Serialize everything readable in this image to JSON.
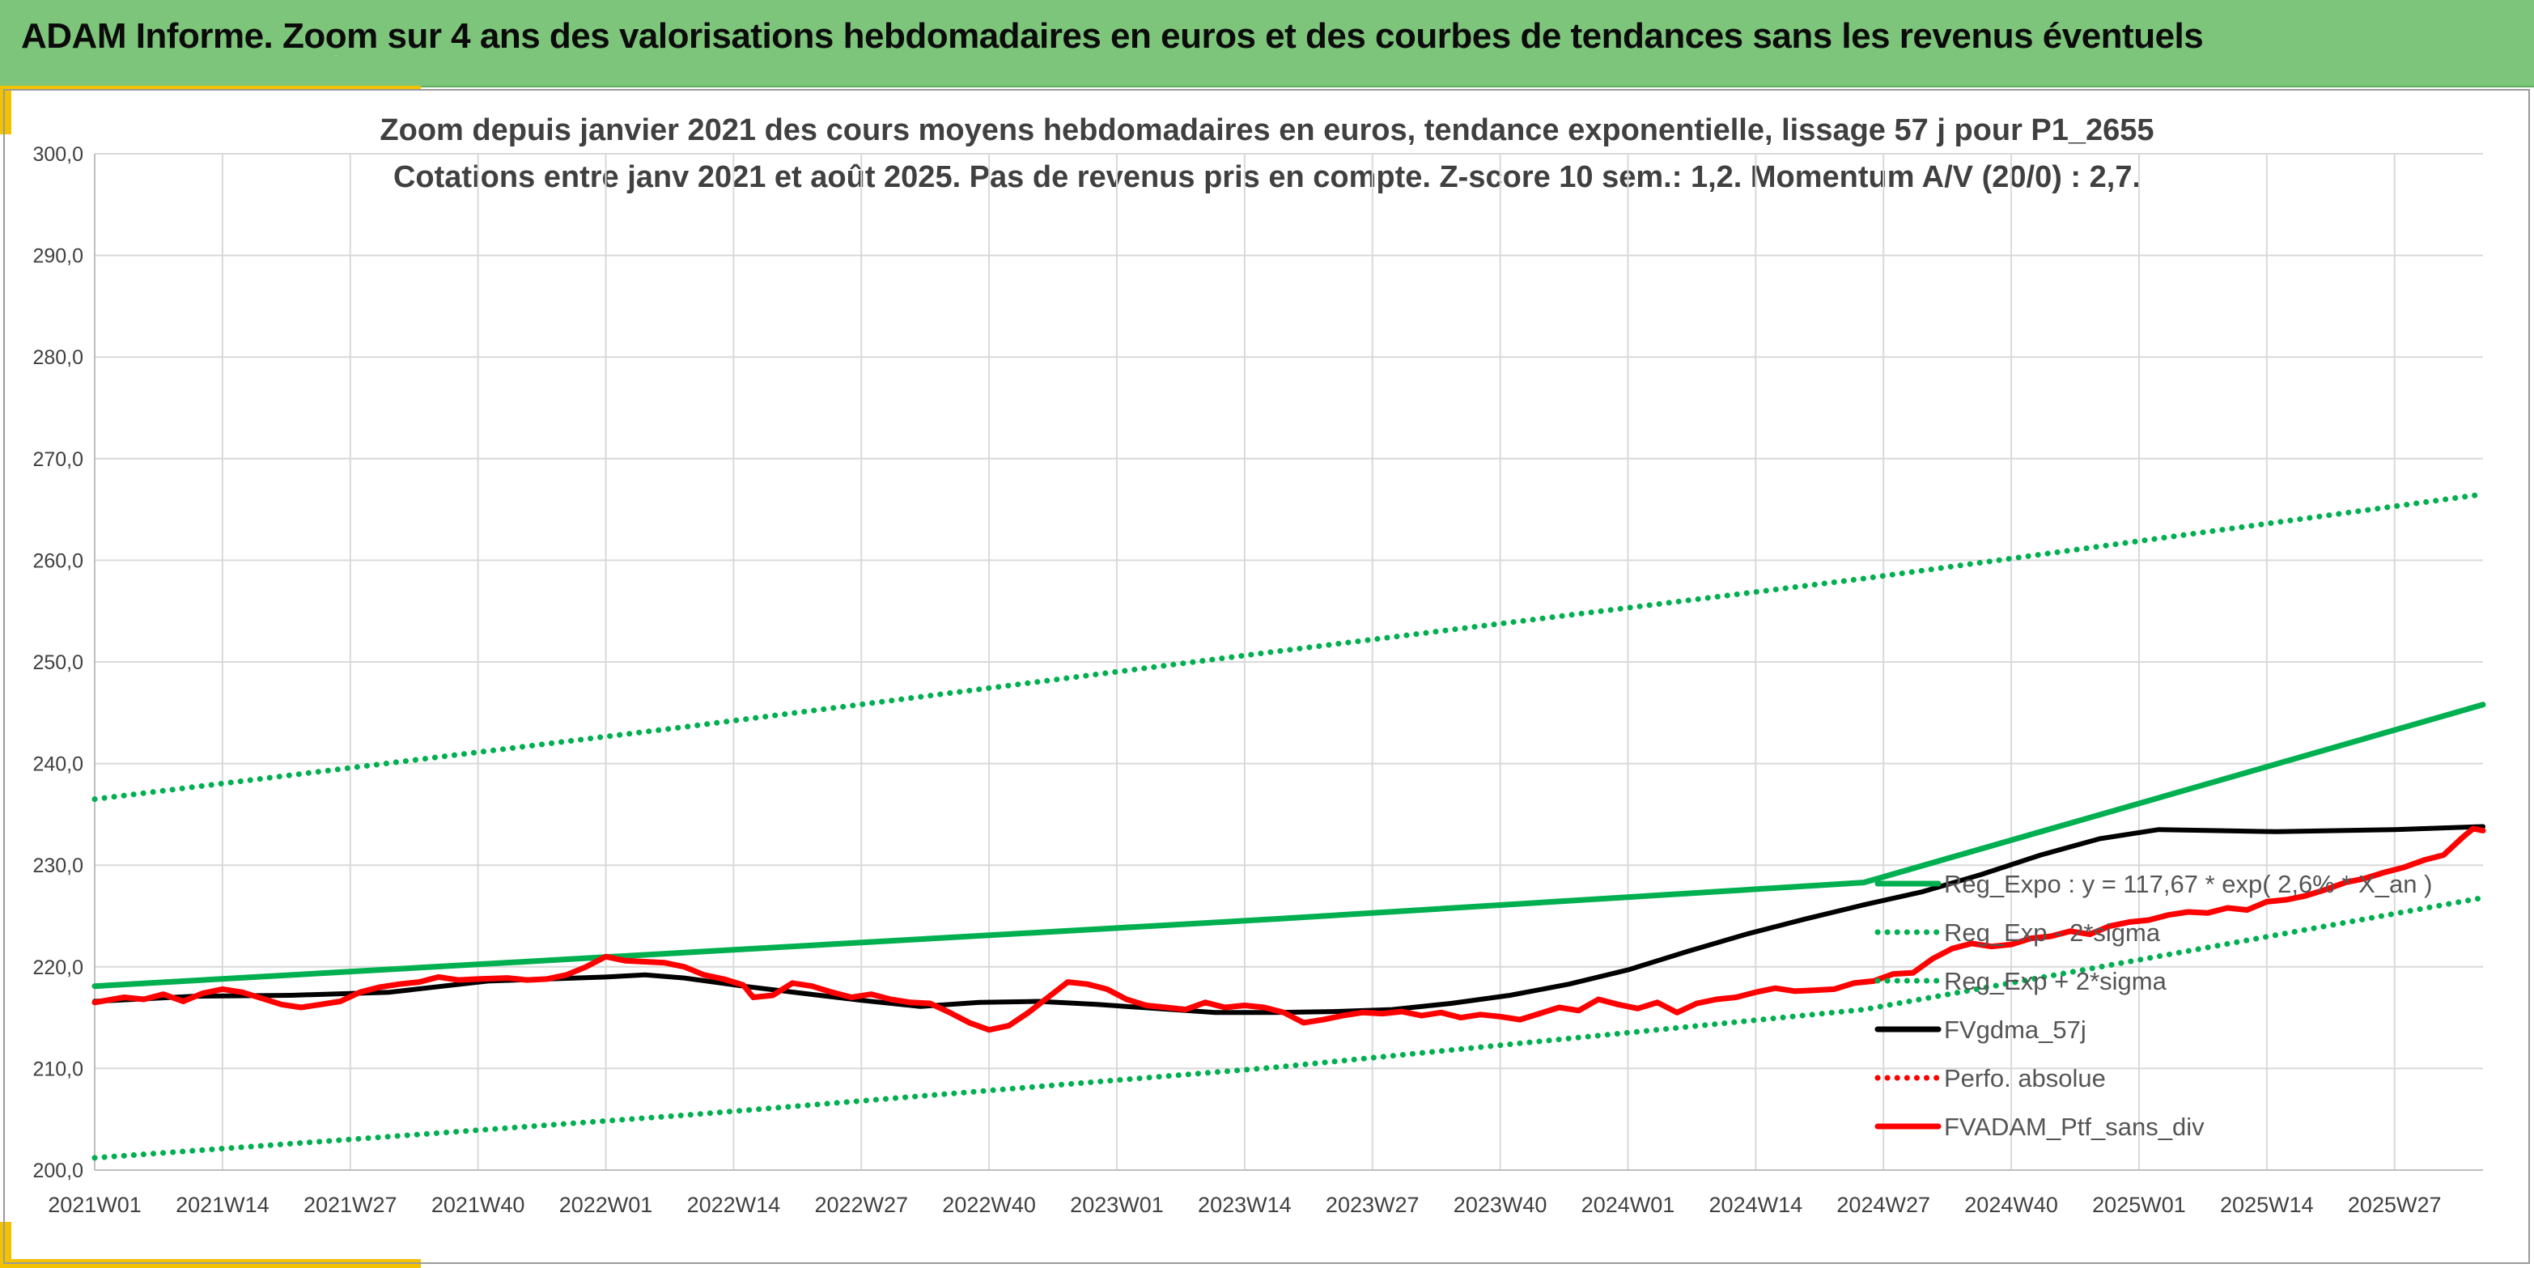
{
  "header": {
    "title": "ADAM Informe. Zoom sur 4 ans des valorisations hebdomadaires en euros et des courbes de tendances sans les revenus éventuels"
  },
  "chart_data": {
    "type": "line",
    "title": "Zoom depuis janvier 2021 des cours moyens hebdomadaires en euros, tendance exponentielle, lissage 57 j pour P1_2655",
    "subtitle": "Cotations entre janv 2021 et août 2025. Pas de revenus pris en compte. Z-score 10 sem.: 1,2. Momentum A/V (20/0) : 2,7.",
    "xlabel": "",
    "ylabel": "",
    "ylim": [
      200,
      300
    ],
    "yticks": [
      "200,0",
      "210,0",
      "220,0",
      "230,0",
      "240,0",
      "250,0",
      "260,0",
      "270,0",
      "280,0",
      "290,0",
      "300,0"
    ],
    "xticks": [
      "2021W01",
      "2021W14",
      "2021W27",
      "2021W40",
      "2022W01",
      "2022W14",
      "2022W27",
      "2022W40",
      "2023W01",
      "2023W14",
      "2023W27",
      "2023W40",
      "2024W01",
      "2024W14",
      "2024W27",
      "2024W40",
      "2025W01",
      "2025W14",
      "2025W27"
    ],
    "grid": true,
    "legend_position": "bottom-right",
    "week_index_range": [
      0,
      243
    ],
    "series": [
      {
        "name": "Reg_Expo : y = 117,67 * exp( 2,6% *  X_an )",
        "color": "#00b050",
        "style": "solid",
        "points": [
          [
            0,
            218.1
          ],
          [
            60,
            221.4
          ],
          [
            120,
            224.7
          ],
          [
            180,
            228.3
          ],
          [
            243,
            245.8
          ]
        ]
      },
      {
        "name": "Reg_Exp - 2*sigma",
        "color": "#00b050",
        "style": "dotted",
        "points": [
          [
            0,
            201.2
          ],
          [
            60,
            205.4
          ],
          [
            120,
            210.1
          ],
          [
            180,
            215.8
          ],
          [
            243,
            226.8
          ]
        ]
      },
      {
        "name": "Reg_Exp + 2*sigma",
        "color": "#00b050",
        "style": "dotted",
        "points": [
          [
            0,
            236.5
          ],
          [
            60,
            243.6
          ],
          [
            120,
            251.0
          ],
          [
            180,
            258.2
          ],
          [
            243,
            266.5
          ]
        ]
      },
      {
        "name": "FVgdma_57j",
        "color": "#000000",
        "style": "solid",
        "points": [
          [
            0,
            216.6
          ],
          [
            10,
            217.1
          ],
          [
            20,
            217.2
          ],
          [
            30,
            217.5
          ],
          [
            40,
            218.6
          ],
          [
            46,
            218.8
          ],
          [
            52,
            219.0
          ],
          [
            56,
            219.2
          ],
          [
            60,
            218.9
          ],
          [
            66,
            218.1
          ],
          [
            72,
            217.4
          ],
          [
            78,
            216.7
          ],
          [
            84,
            216.1
          ],
          [
            90,
            216.5
          ],
          [
            96,
            216.6
          ],
          [
            102,
            216.3
          ],
          [
            108,
            215.9
          ],
          [
            114,
            215.5
          ],
          [
            120,
            215.5
          ],
          [
            126,
            215.6
          ],
          [
            132,
            215.8
          ],
          [
            138,
            216.4
          ],
          [
            144,
            217.2
          ],
          [
            150,
            218.3
          ],
          [
            156,
            219.7
          ],
          [
            162,
            221.5
          ],
          [
            168,
            223.2
          ],
          [
            174,
            224.7
          ],
          [
            180,
            226.1
          ],
          [
            186,
            227.4
          ],
          [
            192,
            229.1
          ],
          [
            198,
            231.0
          ],
          [
            204,
            232.6
          ],
          [
            210,
            233.5
          ],
          [
            216,
            233.4
          ],
          [
            222,
            233.3
          ],
          [
            228,
            233.4
          ],
          [
            234,
            233.5
          ],
          [
            243,
            233.8
          ]
        ]
      },
      {
        "name": "Perfo. absolue",
        "color": "#ff0000",
        "style": "dotted",
        "points": []
      },
      {
        "name": "FVADAM_Ptf_sans_div",
        "color": "#ff0000",
        "style": "solid",
        "points": [
          [
            0,
            216.5
          ],
          [
            3,
            217.0
          ],
          [
            5,
            216.8
          ],
          [
            7,
            217.3
          ],
          [
            9,
            216.6
          ],
          [
            11,
            217.4
          ],
          [
            13,
            217.8
          ],
          [
            15,
            217.5
          ],
          [
            17,
            216.9
          ],
          [
            19,
            216.3
          ],
          [
            21,
            216.0
          ],
          [
            23,
            216.3
          ],
          [
            25,
            216.6
          ],
          [
            27,
            217.5
          ],
          [
            29,
            218.0
          ],
          [
            31,
            218.3
          ],
          [
            33,
            218.5
          ],
          [
            35,
            219.0
          ],
          [
            37,
            218.7
          ],
          [
            39,
            218.8
          ],
          [
            42,
            218.9
          ],
          [
            44,
            218.7
          ],
          [
            46,
            218.8
          ],
          [
            48,
            219.2
          ],
          [
            50,
            220.0
          ],
          [
            52,
            221.0
          ],
          [
            54,
            220.6
          ],
          [
            56,
            220.5
          ],
          [
            58,
            220.4
          ],
          [
            60,
            220.0
          ],
          [
            62,
            219.2
          ],
          [
            64,
            218.8
          ],
          [
            66,
            218.2
          ],
          [
            67,
            217.0
          ],
          [
            69,
            217.2
          ],
          [
            71,
            218.4
          ],
          [
            73,
            218.1
          ],
          [
            75,
            217.5
          ],
          [
            77,
            217.0
          ],
          [
            79,
            217.3
          ],
          [
            81,
            216.8
          ],
          [
            83,
            216.5
          ],
          [
            85,
            216.4
          ],
          [
            87,
            215.5
          ],
          [
            89,
            214.5
          ],
          [
            91,
            213.8
          ],
          [
            93,
            214.2
          ],
          [
            95,
            215.5
          ],
          [
            97,
            217.0
          ],
          [
            99,
            218.5
          ],
          [
            101,
            218.3
          ],
          [
            103,
            217.8
          ],
          [
            105,
            216.8
          ],
          [
            107,
            216.2
          ],
          [
            109,
            216.0
          ],
          [
            111,
            215.8
          ],
          [
            113,
            216.5
          ],
          [
            115,
            216.0
          ],
          [
            117,
            216.2
          ],
          [
            119,
            216.0
          ],
          [
            121,
            215.5
          ],
          [
            123,
            214.5
          ],
          [
            125,
            214.8
          ],
          [
            127,
            215.2
          ],
          [
            129,
            215.5
          ],
          [
            131,
            215.4
          ],
          [
            133,
            215.6
          ],
          [
            135,
            215.2
          ],
          [
            137,
            215.5
          ],
          [
            139,
            215.0
          ],
          [
            141,
            215.3
          ],
          [
            143,
            215.1
          ],
          [
            145,
            214.8
          ],
          [
            147,
            215.4
          ],
          [
            149,
            216.0
          ],
          [
            151,
            215.7
          ],
          [
            153,
            216.8
          ],
          [
            155,
            216.3
          ],
          [
            157,
            215.9
          ],
          [
            159,
            216.5
          ],
          [
            161,
            215.5
          ],
          [
            163,
            216.4
          ],
          [
            165,
            216.8
          ],
          [
            167,
            217.0
          ],
          [
            169,
            217.5
          ],
          [
            171,
            217.9
          ],
          [
            173,
            217.6
          ],
          [
            175,
            217.7
          ],
          [
            177,
            217.8
          ],
          [
            179,
            218.4
          ],
          [
            181,
            218.6
          ],
          [
            183,
            219.3
          ],
          [
            185,
            219.4
          ],
          [
            187,
            220.8
          ],
          [
            189,
            221.8
          ],
          [
            191,
            222.3
          ],
          [
            193,
            222.0
          ],
          [
            195,
            222.2
          ],
          [
            197,
            222.8
          ],
          [
            199,
            223.0
          ],
          [
            201,
            223.5
          ],
          [
            203,
            223.2
          ],
          [
            205,
            224.0
          ],
          [
            207,
            224.4
          ],
          [
            209,
            224.6
          ],
          [
            211,
            225.1
          ],
          [
            213,
            225.4
          ],
          [
            215,
            225.3
          ],
          [
            217,
            225.8
          ],
          [
            219,
            225.6
          ],
          [
            221,
            226.4
          ],
          [
            223,
            226.6
          ],
          [
            225,
            227.0
          ],
          [
            227,
            227.6
          ],
          [
            229,
            228.3
          ],
          [
            231,
            228.7
          ],
          [
            233,
            229.3
          ],
          [
            235,
            229.8
          ],
          [
            237,
            230.5
          ],
          [
            239,
            231.0
          ],
          [
            241,
            232.8
          ],
          [
            242,
            233.6
          ],
          [
            243,
            233.4
          ]
        ]
      }
    ]
  }
}
